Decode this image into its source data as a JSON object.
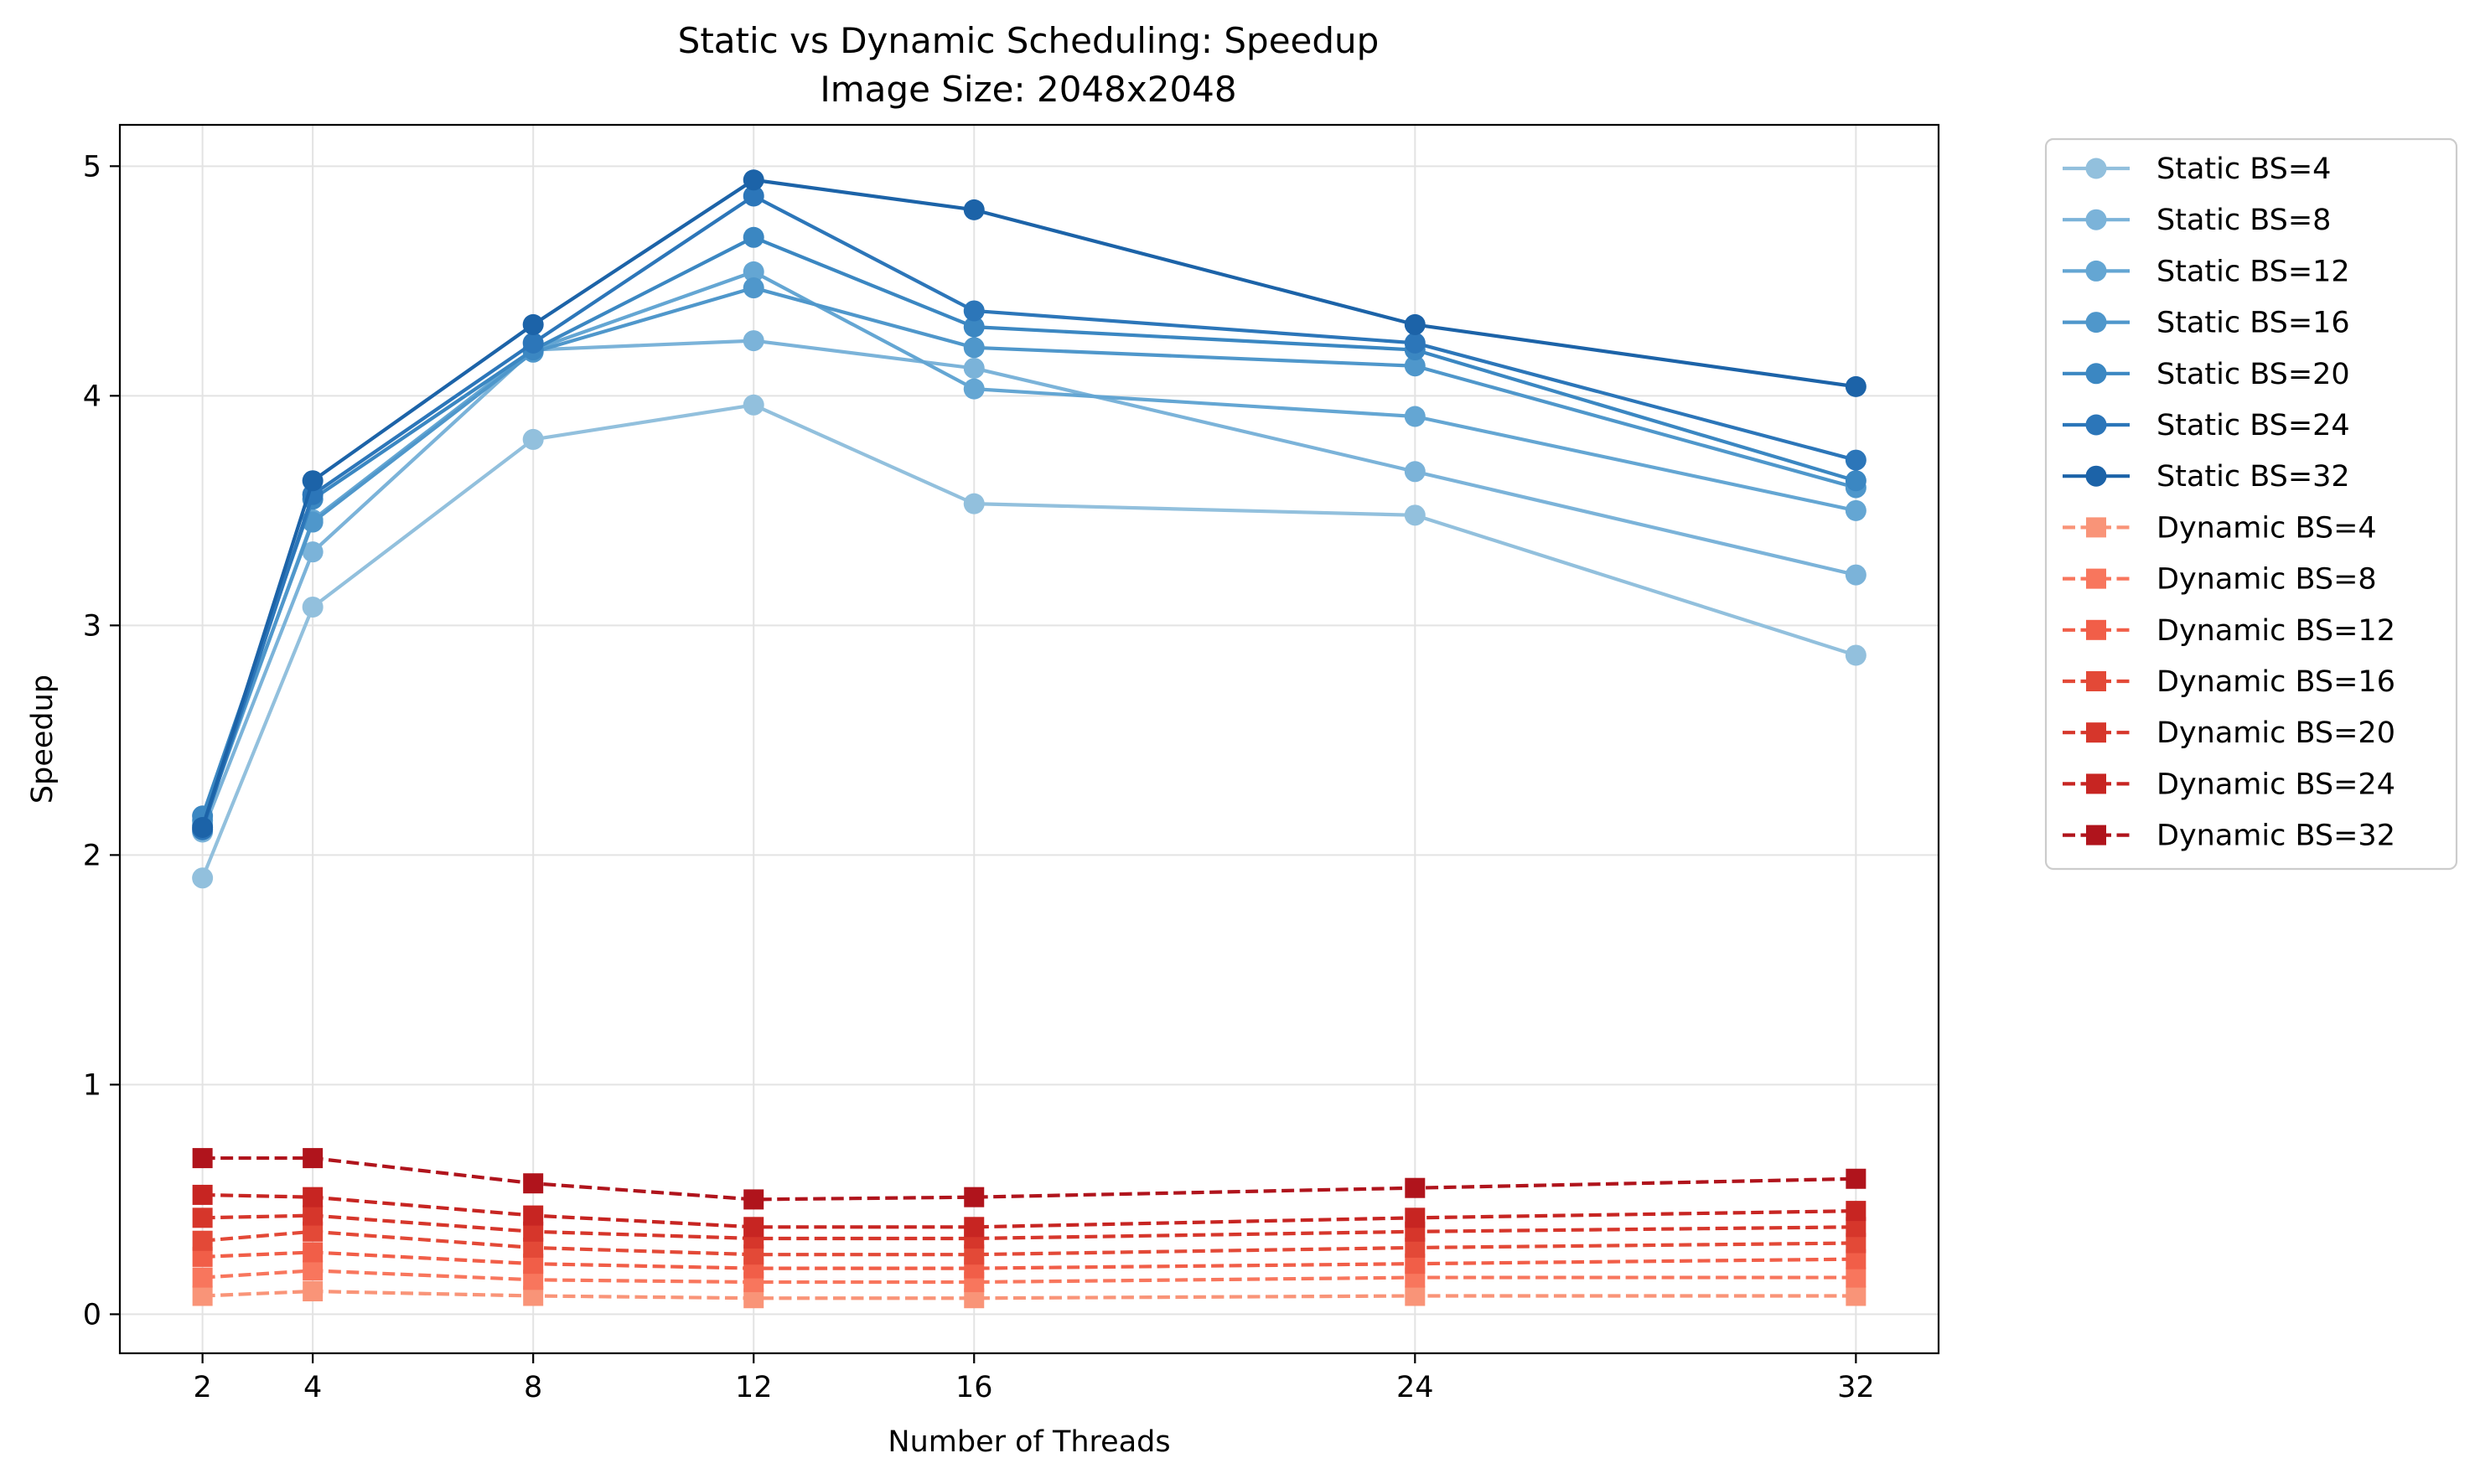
{
  "chart_data": {
    "type": "line",
    "title": "Static vs Dynamic Scheduling: Speedup",
    "subtitle": "Image Size: 2048x2048",
    "xlabel": "Number of Threads",
    "ylabel": "Speedup",
    "x": [
      2,
      4,
      8,
      12,
      16,
      24,
      32
    ],
    "x_ticks": [
      "2",
      "4",
      "8",
      "12",
      "16",
      "24",
      "32"
    ],
    "y_ticks": [
      "0",
      "1",
      "2",
      "3",
      "4",
      "5"
    ],
    "xlim": [
      0.5,
      33.5
    ],
    "ylim": [
      -0.17,
      5.18
    ],
    "grid": true,
    "legend_position": "outside-right",
    "series": [
      {
        "name": "Static BS=4",
        "style": "solid",
        "marker": "circle",
        "color": "#92c0dd",
        "values": [
          1.9,
          3.08,
          3.81,
          3.96,
          3.53,
          3.48,
          2.87
        ]
      },
      {
        "name": "Static BS=8",
        "style": "solid",
        "marker": "circle",
        "color": "#7bb3d9",
        "values": [
          2.1,
          3.32,
          4.2,
          4.24,
          4.12,
          3.67,
          3.22
        ]
      },
      {
        "name": "Static BS=12",
        "style": "solid",
        "marker": "circle",
        "color": "#64a6d3",
        "values": [
          2.13,
          3.46,
          4.2,
          4.54,
          4.03,
          3.91,
          3.5
        ]
      },
      {
        "name": "Static BS=16",
        "style": "solid",
        "marker": "circle",
        "color": "#4f97cb",
        "values": [
          2.15,
          3.45,
          4.19,
          4.47,
          4.21,
          4.13,
          3.6
        ]
      },
      {
        "name": "Static BS=20",
        "style": "solid",
        "marker": "circle",
        "color": "#3b87c2",
        "values": [
          2.17,
          3.55,
          4.2,
          4.69,
          4.3,
          4.2,
          3.63
        ]
      },
      {
        "name": "Static BS=24",
        "style": "solid",
        "marker": "circle",
        "color": "#2c76b9",
        "values": [
          2.11,
          3.57,
          4.23,
          4.87,
          4.37,
          4.23,
          3.72
        ]
      },
      {
        "name": "Static BS=32",
        "style": "solid",
        "marker": "circle",
        "color": "#1c63a8",
        "values": [
          2.12,
          3.63,
          4.31,
          4.94,
          4.81,
          4.31,
          4.04
        ]
      },
      {
        "name": "Dynamic BS=4",
        "style": "dashed",
        "marker": "square",
        "color": "#f99478",
        "values": [
          0.08,
          0.1,
          0.08,
          0.07,
          0.07,
          0.08,
          0.08
        ]
      },
      {
        "name": "Dynamic BS=8",
        "style": "dashed",
        "marker": "square",
        "color": "#f8765d",
        "values": [
          0.16,
          0.19,
          0.15,
          0.14,
          0.14,
          0.16,
          0.16
        ]
      },
      {
        "name": "Dynamic BS=12",
        "style": "dashed",
        "marker": "square",
        "color": "#f15e48",
        "values": [
          0.25,
          0.27,
          0.22,
          0.2,
          0.2,
          0.22,
          0.24
        ]
      },
      {
        "name": "Dynamic BS=16",
        "style": "dashed",
        "marker": "square",
        "color": "#e34937",
        "values": [
          0.32,
          0.36,
          0.29,
          0.26,
          0.26,
          0.29,
          0.31
        ]
      },
      {
        "name": "Dynamic BS=20",
        "style": "dashed",
        "marker": "square",
        "color": "#d6362b",
        "values": [
          0.42,
          0.43,
          0.36,
          0.33,
          0.33,
          0.36,
          0.38
        ]
      },
      {
        "name": "Dynamic BS=24",
        "style": "dashed",
        "marker": "square",
        "color": "#c72522",
        "values": [
          0.52,
          0.51,
          0.43,
          0.38,
          0.38,
          0.42,
          0.45
        ]
      },
      {
        "name": "Dynamic BS=32",
        "style": "dashed",
        "marker": "square",
        "color": "#b0141c",
        "values": [
          0.68,
          0.68,
          0.57,
          0.5,
          0.51,
          0.55,
          0.59
        ]
      }
    ]
  }
}
